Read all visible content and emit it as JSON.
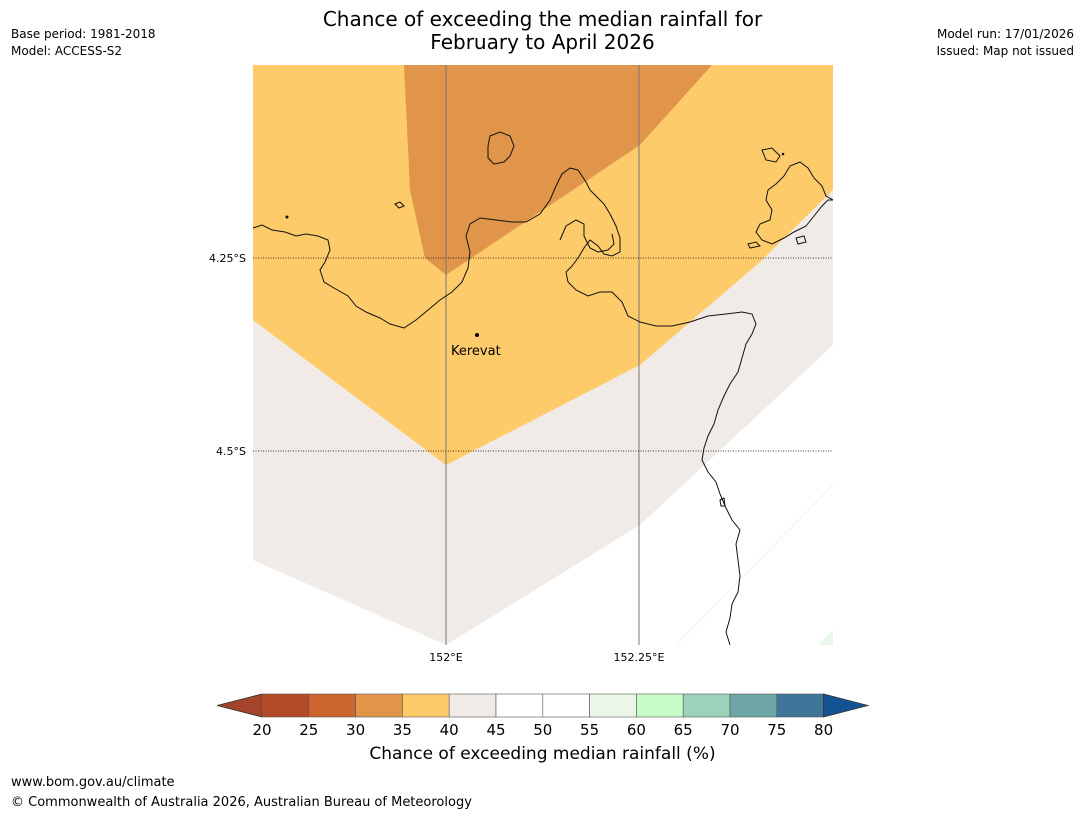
{
  "title_line1": "Chance of exceeding the median rainfall for",
  "title_line2": "February to April 2026",
  "meta_left": {
    "base_period": "Base period: 1981-2018",
    "model": "Model: ACCESS-S2"
  },
  "meta_right": {
    "model_run": "Model run: 17/01/2026",
    "issued": "Issued: Map not issued"
  },
  "map": {
    "lat_labels": [
      "4.25°S",
      "4.5°S"
    ],
    "lon_labels": [
      "152°E",
      "152.25°E"
    ],
    "place_name": "Kerevat"
  },
  "colorbar": {
    "ticks": [
      "20",
      "25",
      "30",
      "35",
      "40",
      "45",
      "50",
      "55",
      "60",
      "65",
      "70",
      "75",
      "80"
    ],
    "colors": [
      "#a5442a",
      "#b44a28",
      "#cd652f",
      "#e0954a",
      "#fecb6a",
      "#f0ebe6",
      "#ffffff",
      "#ffffff",
      "#eaf6ea",
      "#c7fcc7",
      "#9cd2b9",
      "#6ea5a5",
      "#3e7599",
      "#135394"
    ],
    "title": "Chance of exceeding median rainfall (%)"
  },
  "colors": {
    "band_35_40": "#fecb6a",
    "band_30_35": "#e0954a",
    "band_40_45": "#f0ebe6"
  },
  "footer": {
    "url": "www.bom.gov.au/climate",
    "copyright": "© Commonwealth of Australia 2026, Australian Bureau of Meteorology"
  }
}
